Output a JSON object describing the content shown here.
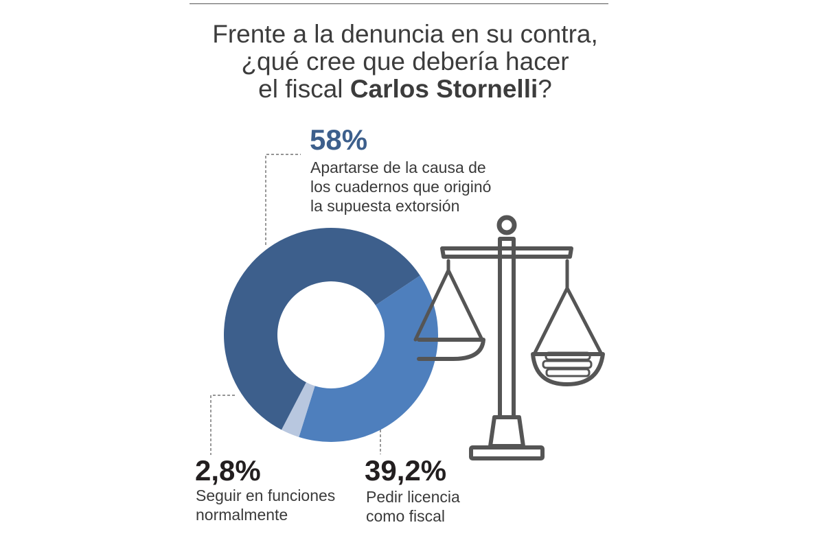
{
  "title": {
    "line1": "Frente a la denuncia en su contra,",
    "line2": "¿qué cree que debería hacer",
    "line3_prefix": "el fiscal ",
    "line3_bold": "Carlos Stornelli",
    "line3_suffix": "?"
  },
  "chart_data": {
    "type": "pie",
    "donut": true,
    "series": [
      {
        "name": "Apartarse de la causa de los cuadernos que originó la supuesta extorsión",
        "value": 58,
        "label": "58%",
        "color": "#3d5f8c"
      },
      {
        "name": "Pedir licencia como fiscal",
        "value": 39.2,
        "label": "39,2%",
        "color": "#4e7fbd"
      },
      {
        "name": "Seguir en funciones normalmente",
        "value": 2.8,
        "label": "2,8%",
        "color": "#b8c7df"
      }
    ]
  },
  "labels": {
    "s1": {
      "pct": "58%",
      "desc": [
        "Apartarse de la causa de",
        "los cuadernos que originó",
        "la supuesta extorsión"
      ]
    },
    "s2": {
      "pct": "39,2%",
      "desc": [
        "Pedir licencia",
        "como fiscal"
      ]
    },
    "s3": {
      "pct": "2,8%",
      "desc": [
        "Seguir en funciones",
        "normalmente"
      ]
    }
  },
  "colors": {
    "pct_main": "#3d5f8c",
    "pct_dark": "#231f20",
    "icon": "#555555"
  },
  "icon": "scales-of-justice-icon"
}
